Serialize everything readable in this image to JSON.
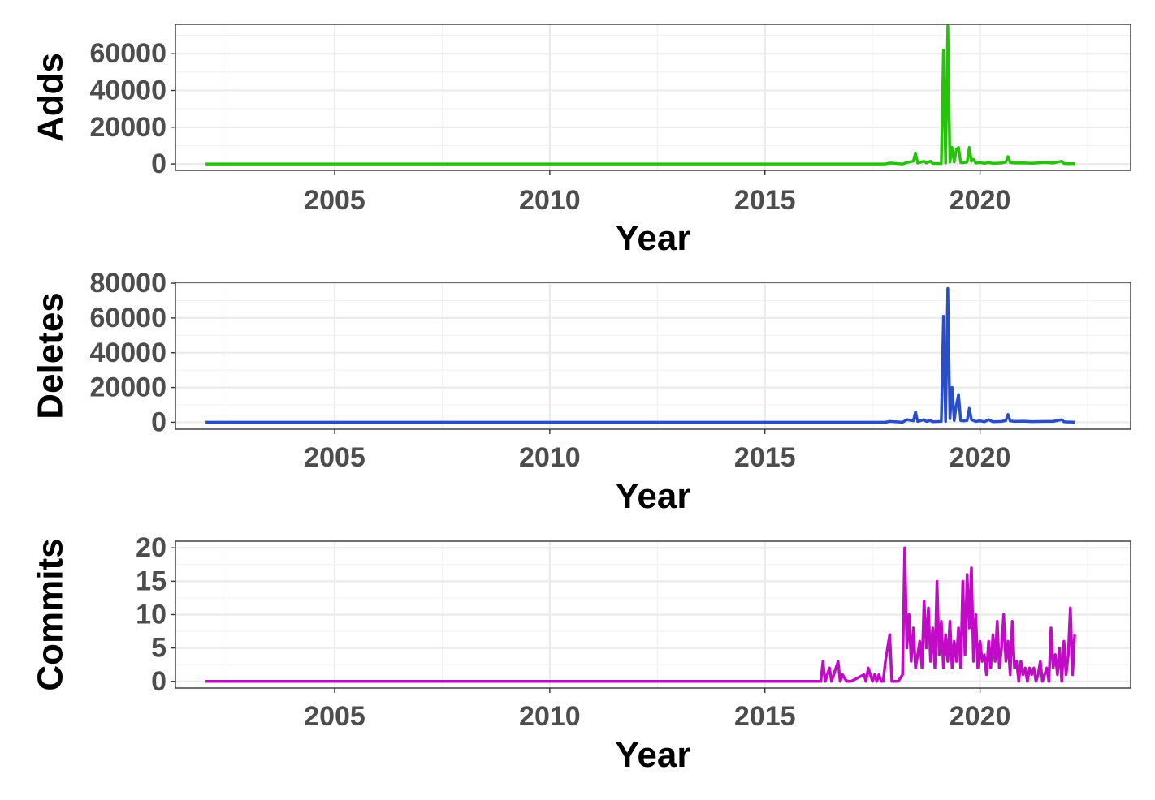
{
  "chart_data": [
    {
      "type": "line",
      "xlabel": "Year",
      "ylabel": "Adds",
      "xlim": [
        2001.3,
        2023.5
      ],
      "ylim": [
        -3500,
        76000
      ],
      "x_ticks": [
        2005,
        2010,
        2015,
        2020
      ],
      "x_tick_labels": [
        "2005",
        "2010",
        "2015",
        "2020"
      ],
      "y_ticks": [
        0,
        20000,
        40000,
        60000
      ],
      "y_tick_labels": [
        "0",
        "20000",
        "40000",
        "60000"
      ],
      "grid": true,
      "legend": "none",
      "color": "#27c20c",
      "series": [
        {
          "x": [
            2002.0,
            2017.8,
            2017.9,
            2018.2,
            2018.3,
            2018.45,
            2018.5,
            2018.55,
            2018.7,
            2018.75,
            2018.85,
            2018.9,
            2019.1,
            2019.15,
            2019.2,
            2019.25,
            2019.3,
            2019.35,
            2019.4,
            2019.45,
            2019.5,
            2019.55,
            2019.6,
            2019.7,
            2019.75,
            2019.8,
            2019.85,
            2019.9,
            2020.0,
            2020.1,
            2020.2,
            2020.3,
            2020.5,
            2020.6,
            2020.65,
            2020.7,
            2020.8,
            2021.0,
            2021.2,
            2021.5,
            2021.7,
            2021.9,
            2021.95,
            2022.0,
            2022.2
          ],
          "y": [
            0,
            0,
            500,
            0,
            800,
            1500,
            6000,
            500,
            1500,
            500,
            1500,
            300,
            200,
            62000,
            500,
            75000,
            1000,
            9000,
            1000,
            8000,
            9000,
            800,
            600,
            1000,
            9000,
            1500,
            2500,
            500,
            800,
            300,
            800,
            300,
            500,
            1000,
            4000,
            800,
            500,
            600,
            400,
            800,
            500,
            1500,
            300,
            200,
            100
          ]
        }
      ]
    },
    {
      "type": "line",
      "xlabel": "Year",
      "ylabel": "Deletes",
      "xlim": [
        2001.3,
        2023.5
      ],
      "ylim": [
        -4000,
        80500
      ],
      "x_ticks": [
        2005,
        2010,
        2015,
        2020
      ],
      "x_tick_labels": [
        "2005",
        "2010",
        "2015",
        "2020"
      ],
      "y_ticks": [
        0,
        20000,
        40000,
        60000,
        80000
      ],
      "y_tick_labels": [
        "0",
        "20000",
        "40000",
        "60000",
        "80000"
      ],
      "grid": true,
      "legend": "none",
      "color": "#2a4ec6",
      "series": [
        {
          "x": [
            2002.0,
            2017.8,
            2017.9,
            2018.2,
            2018.3,
            2018.45,
            2018.5,
            2018.55,
            2018.7,
            2018.75,
            2018.85,
            2018.9,
            2019.1,
            2019.15,
            2019.2,
            2019.25,
            2019.3,
            2019.35,
            2019.4,
            2019.45,
            2019.5,
            2019.55,
            2019.6,
            2019.7,
            2019.75,
            2019.8,
            2019.85,
            2019.9,
            2020.0,
            2020.1,
            2020.2,
            2020.3,
            2020.5,
            2020.6,
            2020.65,
            2020.7,
            2020.8,
            2021.0,
            2021.2,
            2021.5,
            2021.7,
            2021.9,
            2021.95,
            2022.0,
            2022.2
          ],
          "y": [
            0,
            0,
            500,
            0,
            1500,
            800,
            6000,
            500,
            1500,
            500,
            1000,
            300,
            500,
            61000,
            500,
            77000,
            2000,
            20000,
            1000,
            10000,
            16000,
            1000,
            800,
            1000,
            8000,
            1500,
            1000,
            500,
            800,
            300,
            1500,
            300,
            500,
            1000,
            4500,
            800,
            500,
            600,
            400,
            500,
            500,
            1500,
            300,
            200,
            100
          ]
        }
      ]
    },
    {
      "type": "line",
      "xlabel": "Year",
      "ylabel": "Commits",
      "xlim": [
        2001.3,
        2023.5
      ],
      "ylim": [
        -1,
        21
      ],
      "x_ticks": [
        2005,
        2010,
        2015,
        2020
      ],
      "x_tick_labels": [
        "2005",
        "2010",
        "2015",
        "2020"
      ],
      "y_ticks": [
        0,
        5,
        10,
        15,
        20
      ],
      "y_tick_labels": [
        "0",
        "5",
        "10",
        "15",
        "20"
      ],
      "grid": true,
      "legend": "none",
      "color": "#c20bc7",
      "series": [
        {
          "x": [
            2002.0,
            2016.3,
            2016.35,
            2016.4,
            2016.5,
            2016.55,
            2016.6,
            2016.7,
            2016.75,
            2016.8,
            2016.9,
            2017.0,
            2017.3,
            2017.35,
            2017.4,
            2017.5,
            2017.55,
            2017.6,
            2017.65,
            2017.7,
            2017.75,
            2017.8,
            2017.9,
            2017.95,
            2018.0,
            2018.1,
            2018.2,
            2018.25,
            2018.3,
            2018.35,
            2018.4,
            2018.45,
            2018.5,
            2018.55,
            2018.6,
            2018.65,
            2018.7,
            2018.75,
            2018.8,
            2018.85,
            2018.9,
            2018.95,
            2019.0,
            2019.05,
            2019.1,
            2019.15,
            2019.2,
            2019.25,
            2019.3,
            2019.35,
            2019.4,
            2019.45,
            2019.5,
            2019.55,
            2019.6,
            2019.65,
            2019.7,
            2019.75,
            2019.8,
            2019.85,
            2019.9,
            2019.95,
            2020.0,
            2020.05,
            2020.1,
            2020.15,
            2020.2,
            2020.25,
            2020.3,
            2020.35,
            2020.4,
            2020.45,
            2020.5,
            2020.55,
            2020.6,
            2020.65,
            2020.7,
            2020.75,
            2020.8,
            2020.85,
            2020.9,
            2020.95,
            2021.0,
            2021.05,
            2021.1,
            2021.15,
            2021.2,
            2021.25,
            2021.3,
            2021.35,
            2021.4,
            2021.45,
            2021.5,
            2021.55,
            2021.6,
            2021.65,
            2021.7,
            2021.75,
            2021.8,
            2021.85,
            2021.9,
            2021.95,
            2022.0,
            2022.05,
            2022.1,
            2022.15,
            2022.2
          ],
          "y": [
            0,
            0,
            3,
            0,
            2,
            0,
            1,
            3,
            0,
            1,
            0,
            0,
            1,
            0,
            2,
            0,
            1,
            0,
            1,
            0,
            0,
            3,
            7,
            0,
            0,
            0,
            1,
            20,
            5,
            10,
            3,
            8,
            2,
            4,
            6,
            2,
            12,
            5,
            11,
            3,
            8,
            2,
            15,
            4,
            9,
            2,
            7,
            3,
            9,
            2,
            6,
            3,
            8,
            2,
            15,
            4,
            16,
            8,
            17,
            3,
            10,
            2,
            6,
            3,
            4,
            1,
            6,
            2,
            7,
            3,
            9,
            2,
            5,
            10,
            3,
            6,
            1,
            9,
            2,
            3,
            0,
            3,
            1,
            2,
            0,
            2,
            1,
            2,
            0,
            1,
            3,
            0,
            1,
            2,
            0,
            8,
            2,
            4,
            1,
            5,
            0,
            6,
            1,
            4,
            11,
            1,
            7
          ]
        }
      ]
    }
  ]
}
